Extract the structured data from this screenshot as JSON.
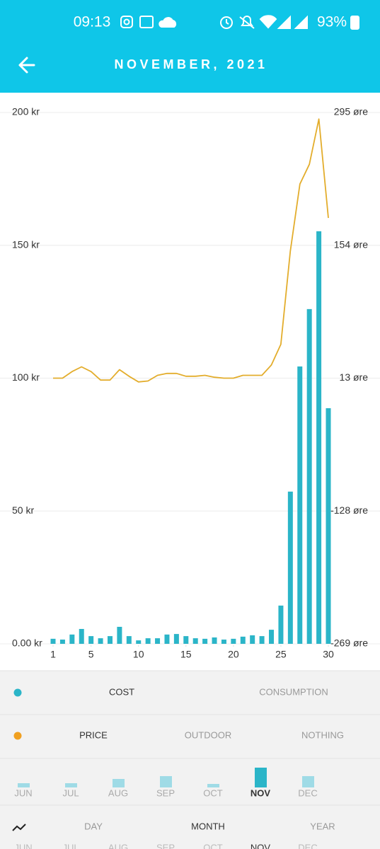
{
  "status_bar": {
    "time": "09:13",
    "battery": "93%"
  },
  "header": {
    "title": "NOVEMBER, 2021"
  },
  "chart_data": {
    "type": "bar",
    "x": [
      1,
      2,
      3,
      4,
      5,
      6,
      7,
      8,
      9,
      10,
      11,
      12,
      13,
      14,
      15,
      16,
      17,
      18,
      19,
      20,
      21,
      22,
      23,
      24,
      25,
      26,
      27,
      28,
      29,
      30
    ],
    "xlim": [
      1,
      30
    ],
    "xticks": [
      1,
      5,
      10,
      15,
      20,
      25,
      30
    ],
    "ylim": [
      0,
      200
    ],
    "yticks": [
      {
        "value": 0,
        "label": "0.00 kr"
      },
      {
        "value": 50,
        "label": "50 kr"
      },
      {
        "value": 100,
        "label": "100 kr"
      },
      {
        "value": 150,
        "label": "150 kr"
      },
      {
        "value": 200,
        "label": "200 kr"
      }
    ],
    "y2lim": [
      -269,
      295
    ],
    "y2ticks": [
      {
        "value": -269,
        "label": "-269 øre"
      },
      {
        "value": -128,
        "label": "-128 øre"
      },
      {
        "value": 13,
        "label": "13 øre"
      },
      {
        "value": 154,
        "label": "154 øre"
      },
      {
        "value": 295,
        "label": "295 øre"
      }
    ],
    "grid": true,
    "series": [
      {
        "name": "COST",
        "type": "bar",
        "color": "#2bb5c8",
        "values": [
          1.9,
          1.6,
          3.5,
          5.6,
          2.9,
          2.1,
          2.9,
          6.4,
          2.9,
          1.3,
          2.1,
          2.1,
          3.5,
          3.7,
          2.9,
          2.1,
          1.9,
          2.4,
          1.6,
          1.9,
          2.7,
          3.2,
          2.9,
          5.3,
          14.4,
          57.3,
          104.4,
          126,
          155.3,
          88.7
        ]
      },
      {
        "name": "PRICE",
        "type": "line",
        "axis": "y2",
        "color": "#e3ad2c",
        "values": [
          13,
          13,
          20,
          25,
          20,
          11,
          11,
          22,
          15,
          9,
          10,
          16,
          18,
          18,
          15,
          15,
          16,
          14,
          13,
          13,
          16,
          16,
          16,
          27,
          49,
          148,
          219,
          240,
          288,
          183
        ]
      }
    ]
  },
  "controls": {
    "metric_options": [
      "CONSUMPTION"
    ],
    "overlay_options": [
      "OUTDOOR",
      "NOTHING"
    ],
    "months": [
      "JUN",
      "JUL",
      "AUG",
      "SEP",
      "OCT",
      "NOV",
      "DEC"
    ],
    "periods": [
      "DAY",
      "MONTH",
      "YEAR"
    ]
  }
}
